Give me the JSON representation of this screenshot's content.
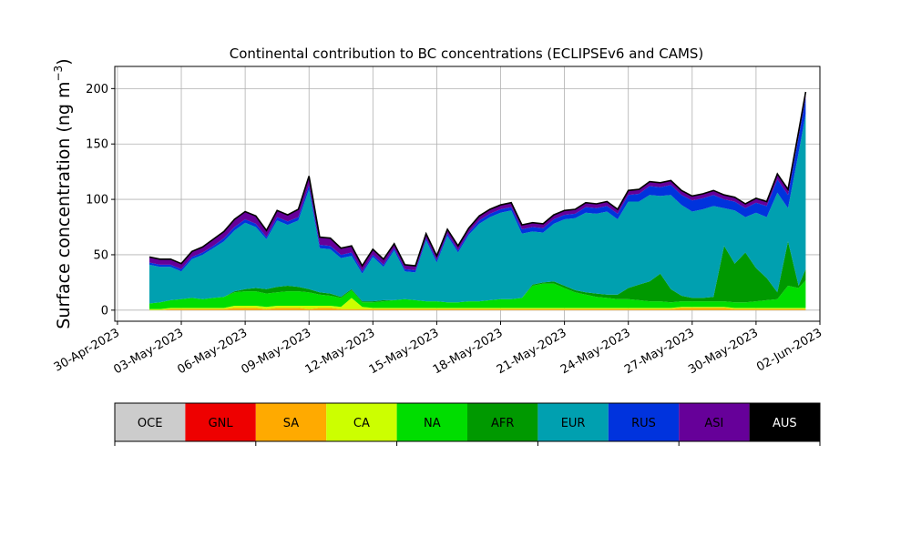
{
  "chart_data": {
    "type": "area",
    "stacked": true,
    "title": "Continental contribution to BC concentrations (ECLIPSEv6 and CAMS)",
    "ylabel": "Surface concentration (ng m",
    "ylabel_superscript": "−3",
    "ylabel_close": ")",
    "xlabel": "",
    "grid": true,
    "ylim": [
      -10,
      220
    ],
    "xlim": [
      "2023-04-29T21:00",
      "2023-06-02T00:00"
    ],
    "yticks": [
      0,
      50,
      100,
      150,
      200
    ],
    "xticks": [
      "30-Apr-2023",
      "03-May-2023",
      "06-May-2023",
      "09-May-2023",
      "12-May-2023",
      "15-May-2023",
      "18-May-2023",
      "21-May-2023",
      "24-May-2023",
      "27-May-2023",
      "30-May-2023",
      "02-Jun-2023"
    ],
    "xtick_dates": [
      "2023-04-30",
      "2023-05-03",
      "2023-05-06",
      "2023-05-09",
      "2023-05-12",
      "2023-05-15",
      "2023-05-18",
      "2023-05-21",
      "2023-05-24",
      "2023-05-27",
      "2023-05-30",
      "2023-06-02"
    ],
    "x": [
      "2023-05-01T12:00",
      "2023-05-02T00:00",
      "2023-05-02T12:00",
      "2023-05-03T00:00",
      "2023-05-03T12:00",
      "2023-05-04T00:00",
      "2023-05-04T12:00",
      "2023-05-05T00:00",
      "2023-05-05T12:00",
      "2023-05-06T00:00",
      "2023-05-06T12:00",
      "2023-05-07T00:00",
      "2023-05-07T12:00",
      "2023-05-08T00:00",
      "2023-05-08T12:00",
      "2023-05-09T00:00",
      "2023-05-09T12:00",
      "2023-05-10T00:00",
      "2023-05-10T12:00",
      "2023-05-11T00:00",
      "2023-05-11T12:00",
      "2023-05-12T00:00",
      "2023-05-12T12:00",
      "2023-05-13T00:00",
      "2023-05-13T12:00",
      "2023-05-14T00:00",
      "2023-05-14T12:00",
      "2023-05-15T00:00",
      "2023-05-15T12:00",
      "2023-05-16T00:00",
      "2023-05-16T12:00",
      "2023-05-17T00:00",
      "2023-05-17T12:00",
      "2023-05-18T00:00",
      "2023-05-18T12:00",
      "2023-05-19T00:00",
      "2023-05-19T12:00",
      "2023-05-20T00:00",
      "2023-05-20T12:00",
      "2023-05-21T00:00",
      "2023-05-21T12:00",
      "2023-05-22T00:00",
      "2023-05-22T12:00",
      "2023-05-23T00:00",
      "2023-05-23T12:00",
      "2023-05-24T00:00",
      "2023-05-24T12:00",
      "2023-05-25T00:00",
      "2023-05-25T12:00",
      "2023-05-26T00:00",
      "2023-05-26T12:00",
      "2023-05-27T00:00",
      "2023-05-27T12:00",
      "2023-05-28T00:00",
      "2023-05-28T12:00",
      "2023-05-29T00:00",
      "2023-05-29T12:00",
      "2023-05-30T00:00",
      "2023-05-30T12:00",
      "2023-05-31T00:00",
      "2023-05-31T12:00",
      "2023-06-01T00:00",
      "2023-06-01T08:00"
    ],
    "series": [
      {
        "name": "OCE",
        "color": "#cccccc",
        "values": [
          0,
          0,
          0,
          0,
          0,
          0,
          0,
          0,
          0,
          0,
          0,
          0,
          0,
          0,
          0,
          0,
          0,
          0,
          0,
          0,
          0,
          0,
          0,
          0,
          0,
          0,
          0,
          0,
          0,
          0,
          0,
          0,
          0,
          0,
          0,
          0,
          0,
          0,
          0,
          0,
          0,
          0,
          0,
          0,
          0,
          0,
          0,
          0,
          0,
          0,
          0,
          0,
          0,
          0,
          0,
          0,
          0,
          0,
          0,
          0,
          0,
          0,
          0
        ]
      },
      {
        "name": "GNL",
        "color": "#ee0000",
        "values": [
          0,
          0,
          0,
          0,
          0,
          0,
          0,
          0,
          0,
          0,
          0,
          0,
          0,
          0,
          0,
          0,
          0,
          0,
          0,
          0,
          0,
          0,
          0,
          0,
          0,
          0,
          0,
          0,
          0,
          0,
          0,
          0,
          0,
          0,
          0,
          0,
          0,
          0,
          0,
          0,
          0,
          0,
          0,
          0,
          0,
          0,
          0,
          0,
          0,
          0,
          0,
          0,
          0,
          0,
          0,
          0,
          0,
          0,
          0,
          0,
          0,
          0,
          0
        ]
      },
      {
        "name": "SA",
        "color": "#ffaa00",
        "values": [
          0,
          0,
          1,
          1,
          1,
          1,
          1,
          1,
          2,
          2,
          2,
          1,
          2,
          2,
          2,
          1,
          2,
          2,
          1,
          1,
          1,
          1,
          1,
          1,
          1,
          1,
          1,
          1,
          1,
          1,
          1,
          1,
          1,
          1,
          1,
          1,
          1,
          1,
          1,
          1,
          1,
          1,
          1,
          1,
          1,
          1,
          1,
          1,
          1,
          1,
          2,
          2,
          2,
          2,
          2,
          1,
          1,
          1,
          1,
          1,
          1,
          1,
          1
        ]
      },
      {
        "name": "CA",
        "color": "#ccff00",
        "values": [
          1,
          1,
          1,
          1,
          1,
          1,
          1,
          1,
          2,
          2,
          2,
          2,
          2,
          2,
          2,
          3,
          2,
          2,
          2,
          10,
          2,
          1,
          1,
          1,
          1,
          1,
          1,
          1,
          1,
          1,
          1,
          1,
          1,
          1,
          1,
          1,
          1,
          1,
          1,
          1,
          1,
          1,
          1,
          1,
          1,
          1,
          1,
          1,
          1,
          1,
          1,
          1,
          1,
          1,
          1,
          1,
          1,
          1,
          1,
          1,
          1,
          1,
          1
        ]
      },
      {
        "name": "NA",
        "color": "#00dd00",
        "values": [
          5,
          6,
          7,
          8,
          9,
          8,
          9,
          10,
          12,
          13,
          13,
          12,
          12,
          13,
          13,
          12,
          10,
          9,
          8,
          7,
          4,
          5,
          6,
          7,
          8,
          7,
          6,
          6,
          5,
          5,
          6,
          6,
          7,
          8,
          8,
          9,
          20,
          22,
          22,
          18,
          14,
          12,
          10,
          9,
          8,
          8,
          7,
          6,
          6,
          5,
          5,
          5,
          5,
          5,
          5,
          5,
          5,
          6,
          7,
          8,
          20,
          18,
          25
        ]
      },
      {
        "name": "AFR",
        "color": "#009900",
        "values": [
          0,
          0,
          0,
          0,
          0,
          0,
          0,
          0,
          1,
          2,
          3,
          4,
          5,
          5,
          4,
          3,
          2,
          2,
          1,
          1,
          1,
          1,
          1,
          0,
          0,
          0,
          0,
          0,
          0,
          0,
          0,
          0,
          0,
          0,
          0,
          0,
          1,
          1,
          2,
          2,
          2,
          2,
          3,
          3,
          4,
          10,
          14,
          18,
          25,
          12,
          5,
          3,
          3,
          4,
          50,
          35,
          45,
          30,
          20,
          6,
          40,
          2,
          10
        ]
      },
      {
        "name": "EUR",
        "color": "#00a0b0",
        "values": [
          35,
          32,
          30,
          25,
          35,
          40,
          45,
          50,
          55,
          60,
          55,
          45,
          60,
          55,
          60,
          90,
          40,
          40,
          35,
          30,
          25,
          40,
          30,
          45,
          25,
          25,
          55,
          35,
          60,
          45,
          60,
          70,
          75,
          78,
          80,
          58,
          48,
          45,
          52,
          60,
          65,
          72,
          72,
          75,
          68,
          78,
          75,
          78,
          70,
          85,
          82,
          78,
          80,
          82,
          34,
          48,
          32,
          50,
          55,
          90,
          30,
          120,
          140
        ]
      },
      {
        "name": "RUS",
        "color": "#0033dd",
        "values": [
          2,
          2,
          2,
          2,
          2,
          2,
          2,
          3,
          3,
          3,
          3,
          2,
          3,
          3,
          3,
          4,
          3,
          3,
          3,
          3,
          2,
          2,
          2,
          2,
          2,
          2,
          2,
          2,
          2,
          2,
          2,
          3,
          3,
          3,
          3,
          4,
          4,
          4,
          4,
          4,
          4,
          5,
          5,
          5,
          5,
          6,
          7,
          8,
          8,
          9,
          9,
          10,
          10,
          10,
          8,
          8,
          8,
          9,
          10,
          12,
          12,
          14,
          15
        ]
      },
      {
        "name": "ASI",
        "color": "#660099",
        "values": [
          5,
          5,
          5,
          5,
          5,
          5,
          6,
          6,
          7,
          7,
          7,
          6,
          6,
          6,
          7,
          8,
          7,
          7,
          6,
          6,
          5,
          5,
          5,
          4,
          4,
          4,
          4,
          4,
          4,
          4,
          4,
          4,
          4,
          4,
          4,
          4,
          4,
          4,
          4,
          4,
          4,
          4,
          4,
          4,
          4,
          4,
          4,
          4,
          4,
          4,
          4,
          4,
          4,
          4,
          4,
          4,
          4,
          4,
          4,
          5,
          5,
          5,
          5
        ]
      },
      {
        "name": "AUS",
        "color": "#000000",
        "values": [
          0,
          0,
          0,
          0,
          0,
          0,
          0,
          0,
          0,
          0,
          0,
          0,
          0,
          0,
          0,
          0,
          0,
          0,
          0,
          0,
          0,
          0,
          0,
          0,
          0,
          0,
          0,
          0,
          0,
          0,
          0,
          0,
          0,
          0,
          0,
          0,
          0,
          0,
          0,
          0,
          0,
          0,
          0,
          0,
          0,
          0,
          0,
          0,
          0,
          0,
          0,
          0,
          0,
          0,
          0,
          0,
          0,
          0,
          0,
          0,
          0,
          0,
          0
        ]
      }
    ],
    "legend_position": "bottom"
  }
}
